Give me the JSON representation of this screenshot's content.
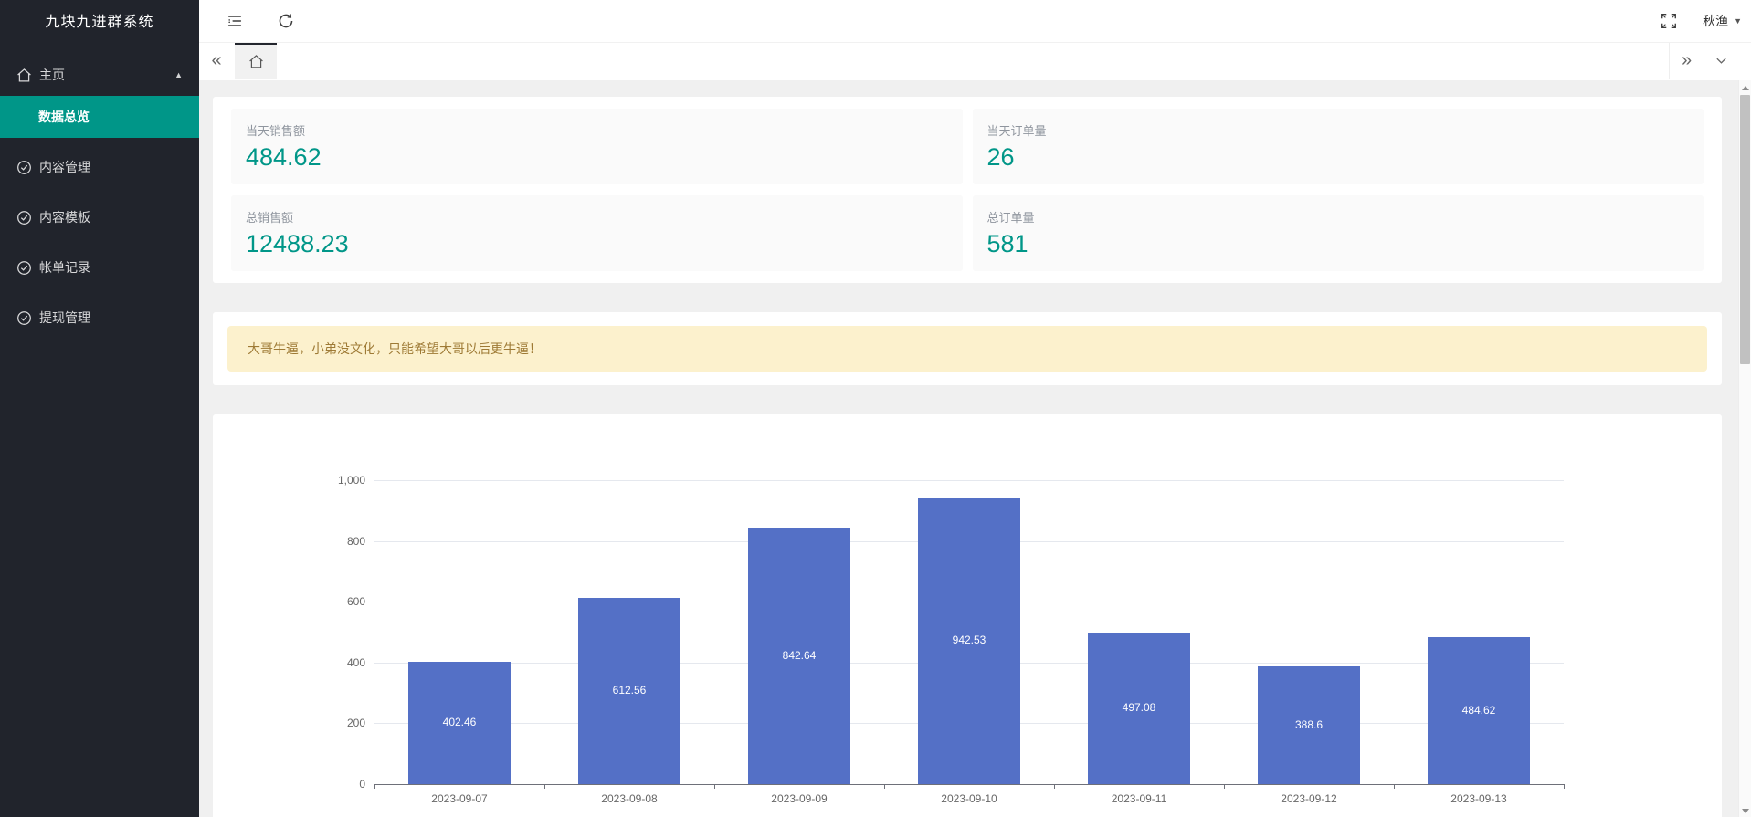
{
  "app": {
    "title": "九块九进群系统"
  },
  "colors": {
    "accent": "#009688",
    "bar": "#5470c6",
    "sidebar_bg": "#21242c",
    "warning_bg": "#fcf1cd",
    "warning_text": "#9e7a35"
  },
  "icons": {
    "caret_up": "▲",
    "caret_down": "▼",
    "double_left": "«",
    "double_right": "»"
  },
  "sidebar": {
    "items": [
      {
        "label": "主页",
        "icon": "home",
        "expanded": true
      },
      {
        "label": "数据总览",
        "active": true,
        "sub": true
      },
      {
        "label": "内容管理",
        "icon": "check-circle"
      },
      {
        "label": "内容模板",
        "icon": "check-circle"
      },
      {
        "label": "帐单记录",
        "icon": "check-circle"
      },
      {
        "label": "提现管理",
        "icon": "check-circle"
      }
    ]
  },
  "header": {
    "user": "秋渔"
  },
  "stats": {
    "cards": [
      {
        "label": "当天销售额",
        "value": "484.62"
      },
      {
        "label": "当天订单量",
        "value": "26"
      },
      {
        "label": "总销售额",
        "value": "12488.23"
      },
      {
        "label": "总订单量",
        "value": "581"
      }
    ]
  },
  "notice": {
    "text": "大哥牛逼，小弟没文化，只能希望大哥以后更牛逼！"
  },
  "chart_data": {
    "type": "bar",
    "title": "",
    "xlabel": "",
    "ylabel": "",
    "categories": [
      "2023-09-07",
      "2023-09-08",
      "2023-09-09",
      "2023-09-10",
      "2023-09-11",
      "2023-09-12",
      "2023-09-13"
    ],
    "values": [
      402.46,
      612.56,
      842.64,
      942.53,
      497.08,
      388.6,
      484.62
    ],
    "values_display": [
      "402.46",
      "612.56",
      "842.64",
      "942.53",
      "497.08",
      "388.6",
      "484.62"
    ],
    "ylim": [
      0,
      1000
    ],
    "y_tick_values": [
      0,
      200,
      400,
      600,
      800,
      1000
    ],
    "y_tick_labels": [
      "0",
      "200",
      "400",
      "600",
      "800",
      "1,000"
    ],
    "grid": true,
    "legend": false,
    "bar_color": "#5470c6",
    "label_position": "inside",
    "label_color": "#ffffff"
  }
}
